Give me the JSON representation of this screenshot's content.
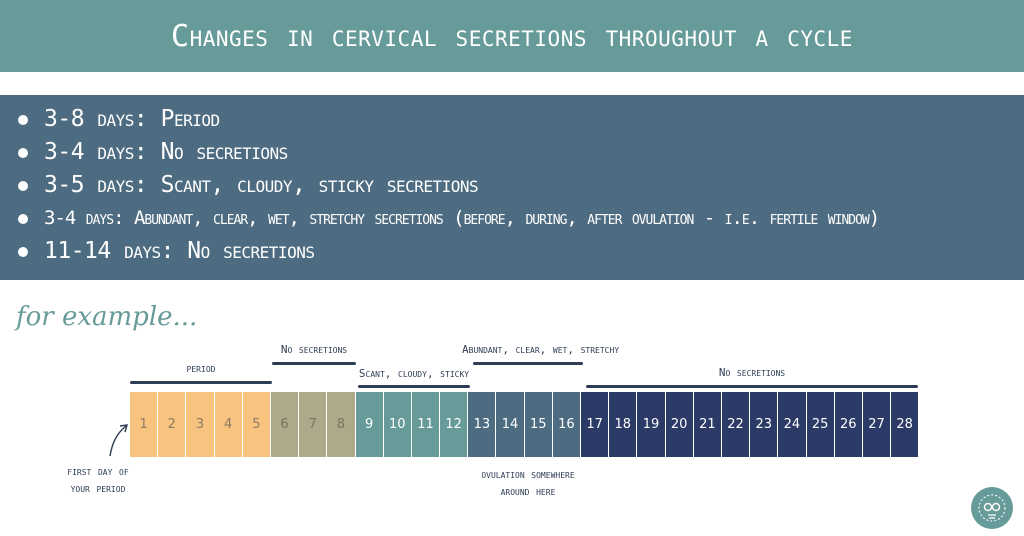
{
  "header": {
    "title": "Changes in cervical secretions throughout a cycle"
  },
  "summary": {
    "items": [
      "3-8 days: Period",
      "3-4 days: No secretions",
      "3-5 days: Scant, cloudy, sticky secretions",
      "3-4 days: Abundant, clear, wet, stretchy secretions (before, during, after ovulation - i.e. fertile window)",
      "11-14 days: No secretions"
    ]
  },
  "example": {
    "label": "for example...",
    "phases": [
      {
        "name": "period",
        "label": "period",
        "days": [
          1,
          5
        ],
        "color": "#f8c27f",
        "text_color": "#8c7b64"
      },
      {
        "name": "no-secretions-early",
        "label": "No secretions",
        "days": [
          6,
          8
        ],
        "color": "#aea98a",
        "text_color": "#78745e"
      },
      {
        "name": "scant",
        "label": "Scant, cloudy, sticky",
        "days": [
          9,
          12
        ],
        "color": "#679b99",
        "text_color": "#ffffff"
      },
      {
        "name": "abundant",
        "label": "Abundant, clear, wet, stretchy",
        "days": [
          13,
          16
        ],
        "color": "#4e6c81",
        "text_color": "#ffffff"
      },
      {
        "name": "no-secretions-late",
        "label": "No secretions",
        "days": [
          17,
          28
        ],
        "color": "#2b3a66",
        "text_color": "#ffffff"
      }
    ],
    "days": [
      "1",
      "2",
      "3",
      "4",
      "5",
      "6",
      "7",
      "8",
      "9",
      "10",
      "11",
      "12",
      "13",
      "14",
      "15",
      "16",
      "17",
      "18",
      "19",
      "20",
      "21",
      "22",
      "23",
      "24",
      "25",
      "26",
      "27",
      "28"
    ],
    "first_day_note": "first day of your period",
    "ovulation_note": "ovulation somewhere around here"
  },
  "colors": {
    "teal": "#679b99",
    "slate": "#4e6c81",
    "navy": "#2b3a66",
    "ink": "#2e3e55"
  },
  "icons": {
    "logo": "lightbulb-owl-logo"
  }
}
